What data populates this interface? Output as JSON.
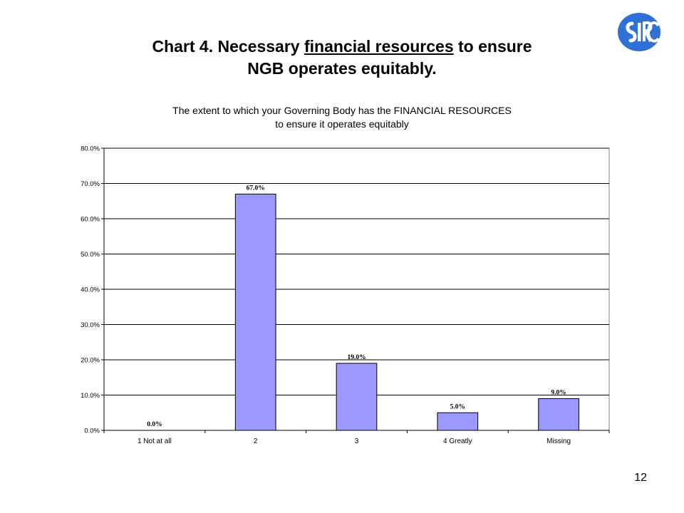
{
  "slide": {
    "title_part1": "Chart 4. Necessary ",
    "title_underlined": "financial resources",
    "title_part2": " to ensure",
    "title_line2": "NGB operates equitably.",
    "page_number": "12"
  },
  "logo": {
    "icon": "sirc-logo",
    "color": "#2f6fd6"
  },
  "chart_data": {
    "type": "bar",
    "title_line1": "The extent to which your Governing Body has the FINANCIAL RESOURCES",
    "title_line2": "to ensure it operates equitably",
    "categories": [
      "1 Not at all",
      "2",
      "3",
      "4 Greatly",
      "Missing"
    ],
    "values": [
      0.0,
      67.0,
      19.0,
      5.0,
      9.0
    ],
    "data_labels": [
      "0.0%",
      "67.0%",
      "19.0%",
      "5.0%",
      "9.0%"
    ],
    "xlabel": "",
    "ylabel": "",
    "ylim": [
      0,
      80
    ],
    "yticks": [
      0,
      10,
      20,
      30,
      40,
      50,
      60,
      70,
      80
    ],
    "ytick_labels": [
      "0.0%",
      "10.0%",
      "20.0%",
      "30.0%",
      "40.0%",
      "50.0%",
      "60.0%",
      "70.0%",
      "80.0%"
    ],
    "grid": "horizontal",
    "legend": "none",
    "bar_color": "#9999ff"
  }
}
